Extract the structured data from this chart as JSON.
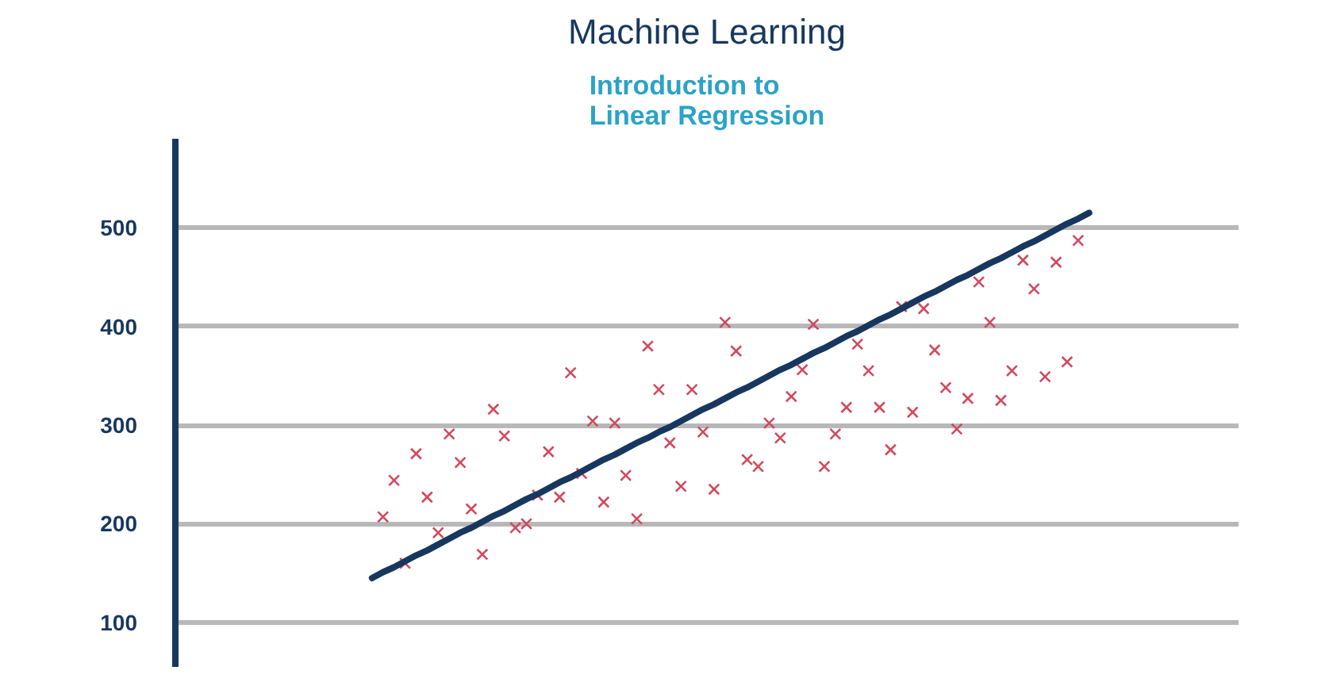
{
  "chart_data": {
    "type": "scatter",
    "title": "Machine Learning",
    "subtitle": "Introduction to\nLinear Regression",
    "categories": [
      null,
      null,
      null,
      null,
      null,
      null,
      null,
      null,
      null,
      null,
      null,
      null,
      null,
      null,
      null,
      null,
      null,
      null,
      null,
      null,
      null,
      null,
      null,
      null,
      null,
      null,
      null,
      null,
      null,
      null,
      null,
      null,
      null,
      null,
      null,
      null,
      null,
      null,
      null,
      null,
      null,
      null,
      null,
      null,
      null,
      null,
      null,
      null,
      null,
      null,
      null,
      null,
      null,
      null,
      null,
      null,
      null,
      null,
      null,
      null,
      null,
      null,
      null,
      null,
      null,
      null
    ],
    "ylim": [
      55,
      590
    ],
    "yticks": [
      100,
      200,
      300,
      400,
      500
    ],
    "grid": "y",
    "tick_labels": "y",
    "marker": "cross",
    "series": [
      {
        "color": "#d04a5e",
        "values": [
          null,
          207,
          244,
          160,
          271,
          227,
          191,
          291,
          262,
          215,
          169,
          316,
          289,
          196,
          200,
          229,
          273,
          227,
          353,
          251,
          304,
          222,
          302,
          249,
          205,
          380,
          336,
          282,
          238,
          336,
          293,
          235,
          404,
          375,
          265,
          258,
          302,
          287,
          329,
          356,
          402,
          258,
          291,
          318,
          382,
          355,
          318,
          275,
          420,
          313,
          418,
          376,
          338,
          296,
          327,
          445,
          404,
          325,
          355,
          467,
          438,
          349,
          465,
          364,
          487,
          null
        ]
      },
      {
        "type": "line",
        "marker": "none",
        "color": "#17375e",
        "values": [
          145,
          151,
          156,
          162,
          168,
          173,
          179,
          185,
          191,
          196,
          202,
          208,
          213,
          219,
          225,
          230,
          236,
          242,
          247,
          253,
          259,
          265,
          270,
          276,
          282,
          287,
          293,
          298,
          304,
          310,
          316,
          321,
          327,
          333,
          338,
          344,
          350,
          356,
          361,
          367,
          373,
          378,
          384,
          390,
          395,
          401,
          407,
          412,
          418,
          424,
          430,
          435,
          441,
          447,
          452,
          458,
          464,
          469,
          475,
          481,
          486,
          492,
          498,
          504,
          509,
          515
        ]
      }
    ]
  }
}
